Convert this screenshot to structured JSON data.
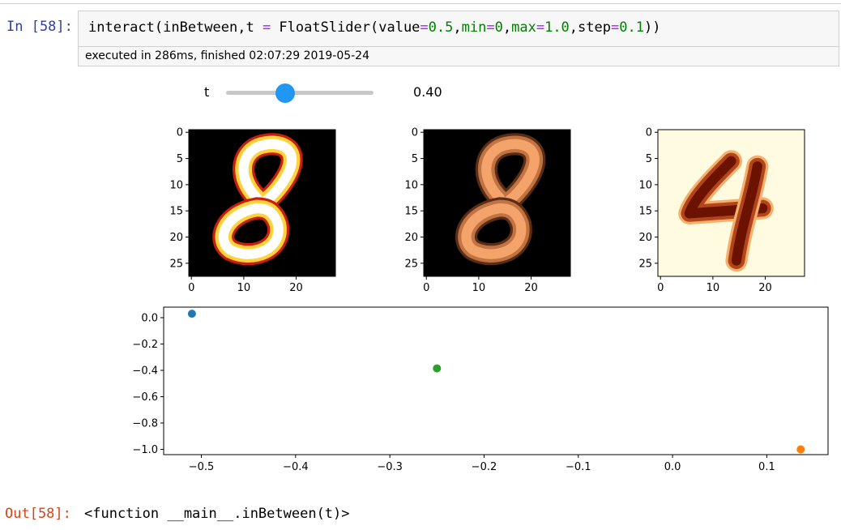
{
  "cell": {
    "in_prompt": "In [58]:",
    "code": {
      "prefix": "interact(inBetween,t ",
      "eq1": "=",
      "mid1": " FloatSlider(value",
      "eq2": "=",
      "v_value": "0.5",
      "comma1": ",",
      "k_min": "min",
      "eq3": "=",
      "v_min": "0",
      "comma2": ",",
      "k_max": "max",
      "eq4": "=",
      "v_max": "1.0",
      "comma3": ",step",
      "eq5": "=",
      "v_step": "0.1",
      "suffix": "))"
    },
    "exec_info": "executed in 286ms, finished 02:07:29 2019-05-24",
    "out_prompt": "Out[58]:",
    "out_text": "<function __main__.inBetween(t)>"
  },
  "widget": {
    "label": "t",
    "value": 0.4,
    "min": 0,
    "max": 1.0,
    "readout": "0.40",
    "handle_color": "#2196f3"
  },
  "digits": {
    "panel_left_label": "8",
    "panel_mid_label": "8",
    "panel_right_label": "4",
    "ticks_y": [
      "0",
      "5",
      "10",
      "15",
      "20",
      "25"
    ],
    "ticks_x": [
      "0",
      "10",
      "20"
    ]
  },
  "chart_data": {
    "type": "scatter",
    "x_ticks": [
      "−0.5",
      "−0.4",
      "−0.3",
      "−0.2",
      "−0.1",
      "0.0",
      "0.1"
    ],
    "y_ticks": [
      "0.0",
      "−0.2",
      "−0.4",
      "−0.6",
      "−0.8",
      "−1.0"
    ],
    "xlim": [
      -0.54,
      0.165
    ],
    "ylim": [
      -1.04,
      0.08
    ],
    "grid": false,
    "points": [
      {
        "x": -0.51,
        "y": 0.03,
        "color": "#1f77b4"
      },
      {
        "x": -0.25,
        "y": -0.385,
        "color": "#2ca02c"
      },
      {
        "x": 0.136,
        "y": -1.0,
        "color": "#ff7f0e"
      }
    ]
  }
}
